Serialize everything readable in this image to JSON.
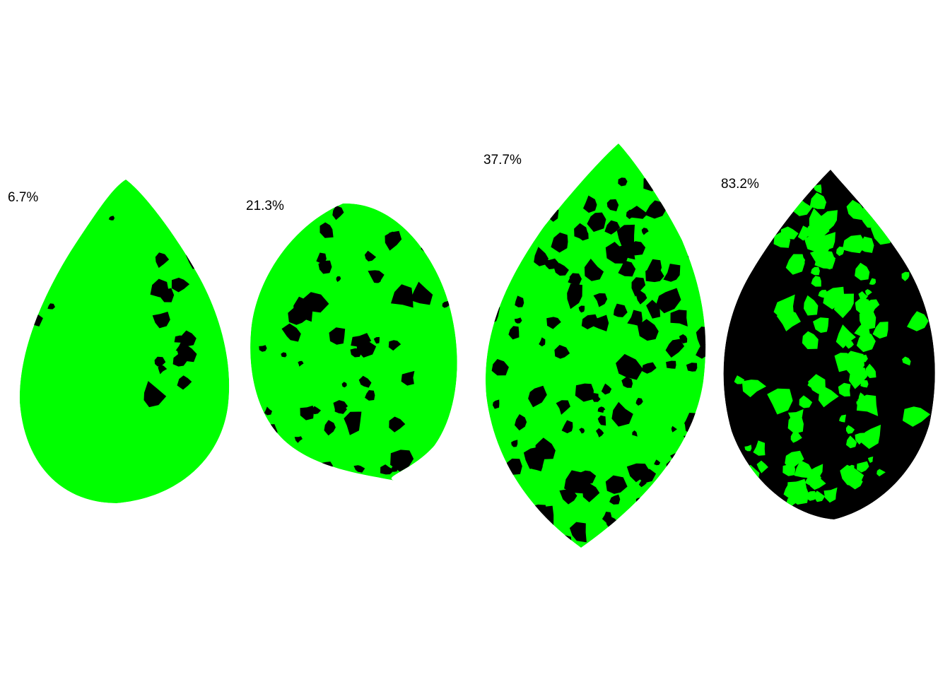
{
  "colors": {
    "healthy": "#00ff00",
    "diseased": "#000000",
    "background": "#ffffff"
  },
  "leaves": [
    {
      "label": "6.7%",
      "severity": 0.067
    },
    {
      "label": "21.3%",
      "severity": 0.213
    },
    {
      "label": "37.7%",
      "severity": 0.377
    },
    {
      "label": "83.2%",
      "severity": 0.832
    }
  ]
}
